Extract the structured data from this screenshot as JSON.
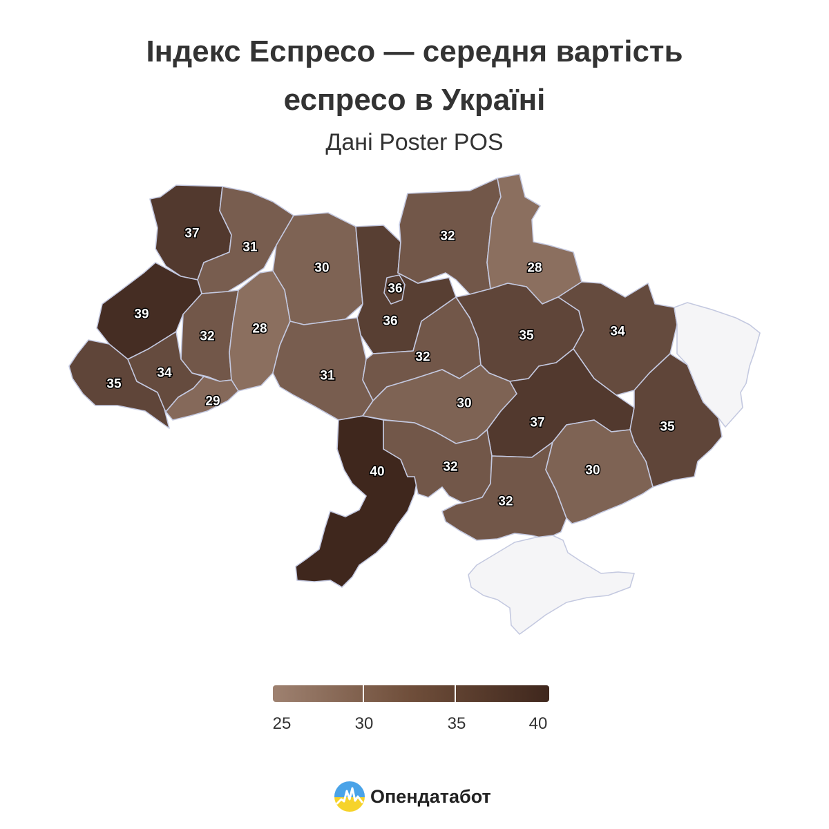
{
  "header": {
    "title_line1": "Індекс Еспресо — середня вартість",
    "title_line2": "еспресо в Україні",
    "subtitle": "Дані Poster POS"
  },
  "map": {
    "unit_hint": "",
    "color_scale": {
      "min": 25,
      "max": 40,
      "low_color": "#9e8170",
      "high_color": "#3f271d",
      "no_data_color": "#f5f5f7"
    },
    "regions": [
      {
        "id": "volyn",
        "value": 37
      },
      {
        "id": "rivne",
        "value": 31
      },
      {
        "id": "zhytomyr",
        "value": 30
      },
      {
        "id": "kyiv-oblast",
        "value": 36
      },
      {
        "id": "kyiv-city",
        "value": 36
      },
      {
        "id": "chernihiv",
        "value": 32
      },
      {
        "id": "sumy",
        "value": 28
      },
      {
        "id": "lviv",
        "value": 39
      },
      {
        "id": "ternopil",
        "value": 32
      },
      {
        "id": "khmelnytskyi",
        "value": 28
      },
      {
        "id": "vinnytsia",
        "value": 31
      },
      {
        "id": "cherkasy",
        "value": 32
      },
      {
        "id": "poltava",
        "value": 35
      },
      {
        "id": "kharkiv",
        "value": 34
      },
      {
        "id": "zakarpattia",
        "value": 35
      },
      {
        "id": "ivano-frankivsk",
        "value": 34
      },
      {
        "id": "chernivtsi",
        "value": 29
      },
      {
        "id": "kirovohrad",
        "value": 30
      },
      {
        "id": "dnipropetrovsk",
        "value": 37
      },
      {
        "id": "donetsk",
        "value": 35
      },
      {
        "id": "odesa",
        "value": 40
      },
      {
        "id": "mykolaiv",
        "value": 32
      },
      {
        "id": "kherson",
        "value": 32
      },
      {
        "id": "zaporizhzhia",
        "value": 30
      },
      {
        "id": "luhansk",
        "value": null
      },
      {
        "id": "crimea",
        "value": null
      }
    ]
  },
  "legend": {
    "ticks": [
      "25",
      "30",
      "35",
      "40"
    ]
  },
  "brand": {
    "name": "Опендатабот"
  }
}
